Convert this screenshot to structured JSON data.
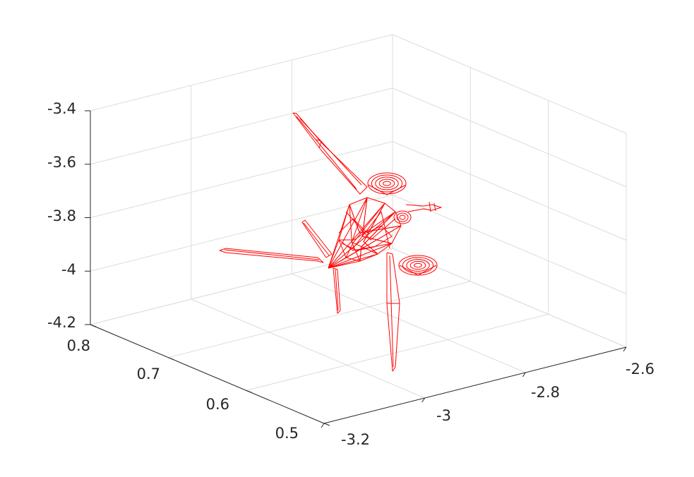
{
  "chart_data": {
    "type": "3d-wireframe",
    "title": "",
    "xlabel": "",
    "ylabel": "",
    "zlabel": "",
    "grid": true,
    "xlim": [
      -3.2,
      -2.6
    ],
    "ylim": [
      0.5,
      0.8
    ],
    "zlim": [
      -4.2,
      -3.4
    ],
    "x_ticks": [
      "-3.2",
      "-3",
      "-2.8",
      "-2.6"
    ],
    "y_ticks": [
      "0.5",
      "0.6",
      "0.7",
      "0.8"
    ],
    "z_ticks": [
      "-4.2",
      "-4",
      "-3.8",
      "-3.6",
      "-3.4"
    ],
    "series": [
      {
        "color": "#ff0000",
        "style": "wireframe mesh (aircraft model)"
      }
    ]
  }
}
